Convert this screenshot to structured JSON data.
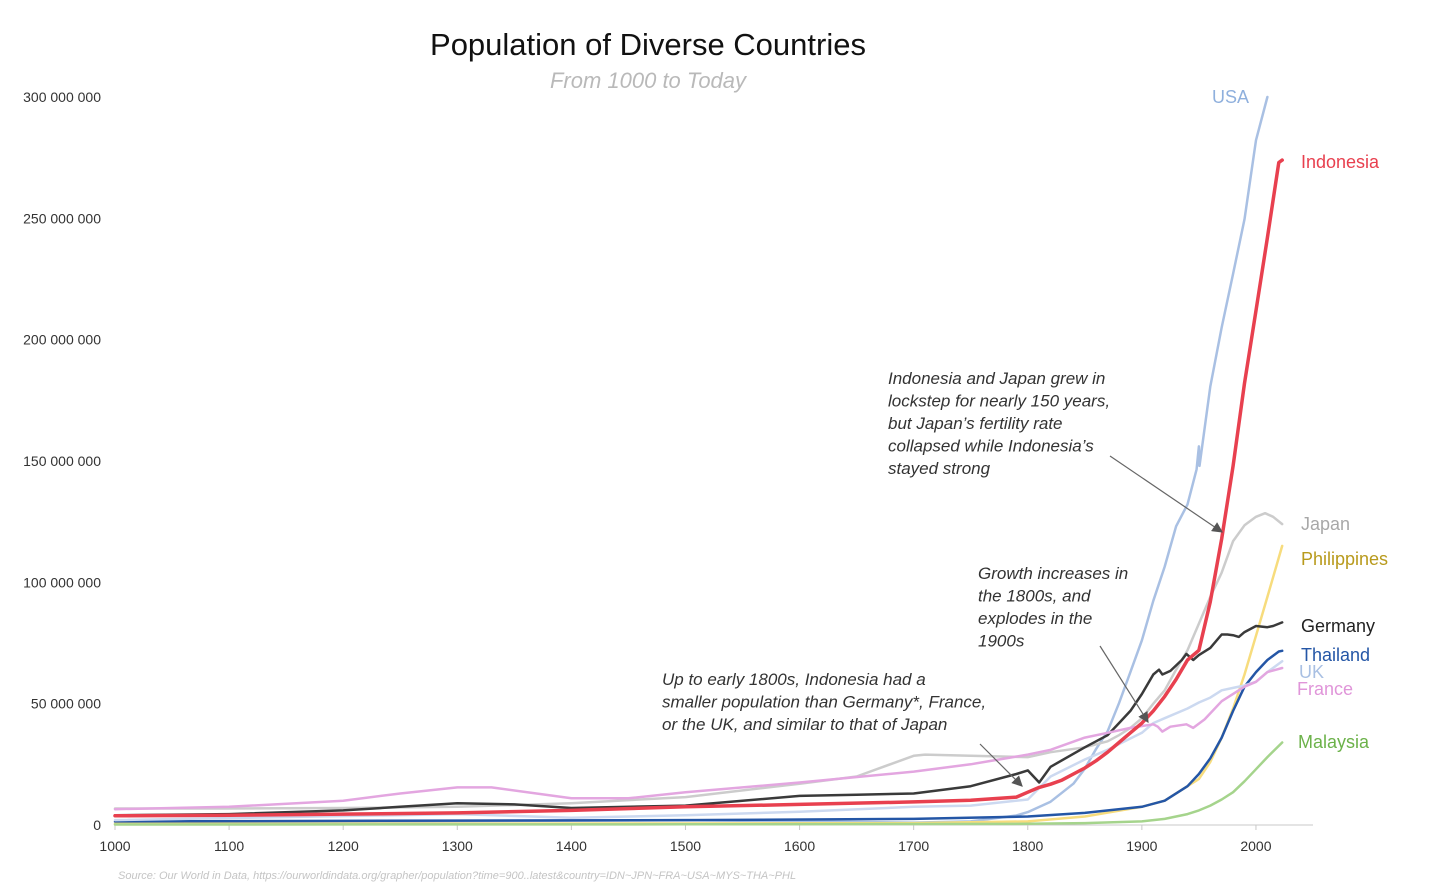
{
  "chart_data": {
    "type": "line",
    "title": "Population of Diverse Countries",
    "subtitle": "From 1000 to Today",
    "xlabel": "",
    "ylabel": "",
    "xlim": [
      1000,
      2050
    ],
    "ylim": [
      0,
      300000000
    ],
    "x_ticks": [
      1000,
      1100,
      1200,
      1300,
      1400,
      1500,
      1600,
      1700,
      1800,
      1900,
      2000
    ],
    "y_ticks": [
      0,
      50000000,
      100000000,
      150000000,
      200000000,
      250000000,
      300000000
    ],
    "y_tick_labels": [
      "0",
      "50 000 000",
      "100 000 000",
      "150 000 000",
      "200 000 000",
      "250 000 000",
      "300 000 000"
    ],
    "grid": false,
    "source": "Source: Our World in Data, https://ourworldindata.org/grapher/population?time=900..latest&country=IDN~JPN~FRA~USA~MYS~THA~PHL",
    "series": [
      {
        "name": "USA",
        "color": "#a9c0e3",
        "width": 2.5,
        "points": [
          [
            1000,
            1000000
          ],
          [
            1500,
            2000000
          ],
          [
            1700,
            1000000
          ],
          [
            1750,
            1500000
          ],
          [
            1790,
            3900000
          ],
          [
            1800,
            5300000
          ],
          [
            1820,
            9600000
          ],
          [
            1840,
            17000000
          ],
          [
            1850,
            23200000
          ],
          [
            1860,
            31400000
          ],
          [
            1870,
            38600000
          ],
          [
            1880,
            50200000
          ],
          [
            1890,
            63000000
          ],
          [
            1900,
            76100000
          ],
          [
            1910,
            92400000
          ],
          [
            1920,
            106500000
          ],
          [
            1930,
            123100000
          ],
          [
            1940,
            132100000
          ],
          [
            1948,
            146600000
          ],
          [
            1950,
            156000000
          ],
          [
            1950.5,
            148000000
          ],
          [
            1960,
            180700000
          ],
          [
            1970,
            205100000
          ],
          [
            1980,
            227200000
          ],
          [
            1990,
            249600000
          ],
          [
            2000,
            282200000
          ],
          [
            2010,
            300000000
          ]
        ]
      },
      {
        "name": "Indonesia",
        "color": "#e8404f",
        "width": 3.5,
        "points": [
          [
            1000,
            3800000
          ],
          [
            1100,
            4000000
          ],
          [
            1200,
            4500000
          ],
          [
            1300,
            5000000
          ],
          [
            1400,
            6000000
          ],
          [
            1500,
            7500000
          ],
          [
            1600,
            8500000
          ],
          [
            1700,
            9500000
          ],
          [
            1750,
            10200000
          ],
          [
            1790,
            11500000
          ],
          [
            1800,
            13500000
          ],
          [
            1810,
            15500000
          ],
          [
            1820,
            16800000
          ],
          [
            1830,
            18500000
          ],
          [
            1840,
            21000000
          ],
          [
            1850,
            23500000
          ],
          [
            1860,
            26500000
          ],
          [
            1870,
            30000000
          ],
          [
            1880,
            34000000
          ],
          [
            1890,
            38000000
          ],
          [
            1900,
            42000000
          ],
          [
            1910,
            47000000
          ],
          [
            1920,
            53000000
          ],
          [
            1930,
            60000000
          ],
          [
            1940,
            68000000
          ],
          [
            1950,
            72000000
          ],
          [
            1960,
            92000000
          ],
          [
            1970,
            118000000
          ],
          [
            1980,
            148000000
          ],
          [
            1990,
            182000000
          ],
          [
            2000,
            212000000
          ],
          [
            2010,
            242000000
          ],
          [
            2020,
            273000000
          ],
          [
            2023,
            274000000
          ]
        ]
      },
      {
        "name": "Japan",
        "color": "#cccccc",
        "width": 2.5,
        "points": [
          [
            1000,
            6800000
          ],
          [
            1100,
            6800000
          ],
          [
            1200,
            7000000
          ],
          [
            1300,
            7500000
          ],
          [
            1400,
            9000000
          ],
          [
            1500,
            11500000
          ],
          [
            1600,
            17000000
          ],
          [
            1650,
            20000000
          ],
          [
            1700,
            28500000
          ],
          [
            1710,
            29000000
          ],
          [
            1750,
            28500000
          ],
          [
            1800,
            28000000
          ],
          [
            1820,
            30000000
          ],
          [
            1850,
            32000000
          ],
          [
            1870,
            34500000
          ],
          [
            1880,
            37000000
          ],
          [
            1890,
            40000000
          ],
          [
            1900,
            44000000
          ],
          [
            1910,
            50000000
          ],
          [
            1920,
            55500000
          ],
          [
            1930,
            64000000
          ],
          [
            1940,
            72000000
          ],
          [
            1950,
            83000000
          ],
          [
            1960,
            94000000
          ],
          [
            1970,
            104000000
          ],
          [
            1980,
            117000000
          ],
          [
            1990,
            123500000
          ],
          [
            2000,
            127000000
          ],
          [
            2008,
            128500000
          ],
          [
            2015,
            127000000
          ],
          [
            2023,
            124000000
          ]
        ]
      },
      {
        "name": "Philippines",
        "color": "#f7dc7d",
        "width": 2.5,
        "points": [
          [
            1000,
            500000
          ],
          [
            1500,
            600000
          ],
          [
            1700,
            800000
          ],
          [
            1800,
            1500000
          ],
          [
            1850,
            3500000
          ],
          [
            1900,
            7500000
          ],
          [
            1920,
            10000000
          ],
          [
            1940,
            16000000
          ],
          [
            1950,
            19000000
          ],
          [
            1960,
            26000000
          ],
          [
            1970,
            36000000
          ],
          [
            1980,
            48000000
          ],
          [
            1990,
            62000000
          ],
          [
            2000,
            78000000
          ],
          [
            2010,
            94000000
          ],
          [
            2023,
            115000000
          ]
        ]
      },
      {
        "name": "Germany",
        "color": "#3a3a3a",
        "width": 2.5,
        "points": [
          [
            1000,
            4000000
          ],
          [
            1100,
            4500000
          ],
          [
            1200,
            6000000
          ],
          [
            1250,
            7500000
          ],
          [
            1300,
            9000000
          ],
          [
            1350,
            8500000
          ],
          [
            1400,
            7000000
          ],
          [
            1500,
            8000000
          ],
          [
            1600,
            12000000
          ],
          [
            1650,
            12500000
          ],
          [
            1700,
            13000000
          ],
          [
            1750,
            16000000
          ],
          [
            1790,
            21000000
          ],
          [
            1800,
            22500000
          ],
          [
            1810,
            17500000
          ],
          [
            1820,
            24000000
          ],
          [
            1850,
            32000000
          ],
          [
            1870,
            37000000
          ],
          [
            1880,
            42000000
          ],
          [
            1890,
            47000000
          ],
          [
            1900,
            54000000
          ],
          [
            1910,
            62000000
          ],
          [
            1915,
            64000000
          ],
          [
            1918,
            62000000
          ],
          [
            1925,
            63500000
          ],
          [
            1935,
            68000000
          ],
          [
            1939,
            70500000
          ],
          [
            1945,
            68000000
          ],
          [
            1950,
            70000000
          ],
          [
            1960,
            73000000
          ],
          [
            1970,
            78500000
          ],
          [
            1975,
            78500000
          ],
          [
            1980,
            78200000
          ],
          [
            1985,
            77500000
          ],
          [
            1990,
            79500000
          ],
          [
            2000,
            82000000
          ],
          [
            2010,
            81500000
          ],
          [
            2015,
            82000000
          ],
          [
            2023,
            83500000
          ]
        ]
      },
      {
        "name": "Thailand",
        "color": "#2456a6",
        "width": 2.5,
        "points": [
          [
            1000,
            1500000
          ],
          [
            1500,
            2000000
          ],
          [
            1700,
            2500000
          ],
          [
            1800,
            3500000
          ],
          [
            1850,
            5000000
          ],
          [
            1900,
            7500000
          ],
          [
            1920,
            10000000
          ],
          [
            1940,
            16000000
          ],
          [
            1950,
            21000000
          ],
          [
            1960,
            27500000
          ],
          [
            1970,
            36000000
          ],
          [
            1980,
            47000000
          ],
          [
            1990,
            57000000
          ],
          [
            2000,
            63000000
          ],
          [
            2010,
            68000000
          ],
          [
            2020,
            71500000
          ],
          [
            2023,
            71800000
          ]
        ]
      },
      {
        "name": "UK",
        "color": "#ccd9f0",
        "width": 2.5,
        "points": [
          [
            1000,
            2000000
          ],
          [
            1300,
            4500000
          ],
          [
            1400,
            3000000
          ],
          [
            1500,
            4000000
          ],
          [
            1600,
            5500000
          ],
          [
            1700,
            7500000
          ],
          [
            1750,
            8000000
          ],
          [
            1800,
            10500000
          ],
          [
            1820,
            20000000
          ],
          [
            1850,
            27000000
          ],
          [
            1870,
            31000000
          ],
          [
            1900,
            38000000
          ],
          [
            1910,
            42000000
          ],
          [
            1920,
            44000000
          ],
          [
            1940,
            48000000
          ],
          [
            1950,
            50500000
          ],
          [
            1960,
            52500000
          ],
          [
            1970,
            55500000
          ],
          [
            1980,
            56500000
          ],
          [
            1990,
            57500000
          ],
          [
            2000,
            59000000
          ],
          [
            2010,
            63000000
          ],
          [
            2023,
            67500000
          ]
        ]
      },
      {
        "name": "France",
        "color": "#e3a6e0",
        "width": 2.5,
        "points": [
          [
            1000,
            6500000
          ],
          [
            1100,
            7500000
          ],
          [
            1200,
            10000000
          ],
          [
            1250,
            13000000
          ],
          [
            1300,
            15500000
          ],
          [
            1330,
            15500000
          ],
          [
            1400,
            11000000
          ],
          [
            1450,
            11000000
          ],
          [
            1500,
            13500000
          ],
          [
            1600,
            17500000
          ],
          [
            1700,
            22000000
          ],
          [
            1750,
            25000000
          ],
          [
            1800,
            29000000
          ],
          [
            1820,
            31000000
          ],
          [
            1850,
            36000000
          ],
          [
            1870,
            38000000
          ],
          [
            1890,
            40000000
          ],
          [
            1910,
            41500000
          ],
          [
            1914,
            40500000
          ],
          [
            1918,
            38500000
          ],
          [
            1925,
            40500000
          ],
          [
            1939,
            41500000
          ],
          [
            1945,
            40000000
          ],
          [
            1955,
            43500000
          ],
          [
            1970,
            51000000
          ],
          [
            1990,
            57000000
          ],
          [
            2000,
            59000000
          ],
          [
            2010,
            63000000
          ],
          [
            2023,
            64700000
          ]
        ]
      },
      {
        "name": "Malaysia",
        "color": "#a5d48c",
        "width": 2.5,
        "points": [
          [
            1000,
            200000
          ],
          [
            1500,
            300000
          ],
          [
            1700,
            400000
          ],
          [
            1800,
            500000
          ],
          [
            1850,
            800000
          ],
          [
            1900,
            1500000
          ],
          [
            1920,
            2500000
          ],
          [
            1940,
            4500000
          ],
          [
            1950,
            6000000
          ],
          [
            1960,
            8000000
          ],
          [
            1970,
            10500000
          ],
          [
            1980,
            13500000
          ],
          [
            1990,
            18000000
          ],
          [
            2000,
            23000000
          ],
          [
            2010,
            28000000
          ],
          [
            2023,
            34000000
          ]
        ]
      }
    ],
    "series_labels": [
      {
        "name": "USA",
        "text": "USA",
        "color": "#8fb0dd"
      },
      {
        "name": "Indonesia",
        "text": "Indonesia",
        "color": "#e8404f"
      },
      {
        "name": "Japan",
        "text": "Japan",
        "color": "#a8a8a8"
      },
      {
        "name": "Philippines",
        "text": "Philippines",
        "color": "#b89a1c"
      },
      {
        "name": "Germany",
        "text": "Germany",
        "color": "#222222"
      },
      {
        "name": "Thailand",
        "text": "Thailand",
        "color": "#2456a6"
      },
      {
        "name": "UK",
        "text": "UK",
        "color": "#a9c0e3"
      },
      {
        "name": "France",
        "text": "France",
        "color": "#e095d9"
      },
      {
        "name": "Malaysia",
        "text": "Malaysia",
        "color": "#6cb24a"
      }
    ],
    "annotations": [
      {
        "id": "lockstep",
        "lines": [
          "Indonesia and Japan grew in",
          "lockstep for nearly 150 years,",
          "but Japan’s fertility rate",
          "collapsed while Indonesia’s",
          "stayed strong"
        ]
      },
      {
        "id": "growth",
        "lines": [
          "Growth increases in",
          "the 1800s, and",
          "explodes in the",
          "1900s"
        ]
      },
      {
        "id": "early",
        "lines": [
          "Up to early 1800s, Indonesia had a",
          "smaller population than Germany*, France,",
          "or the UK, and similar to that of Japan"
        ]
      }
    ]
  }
}
